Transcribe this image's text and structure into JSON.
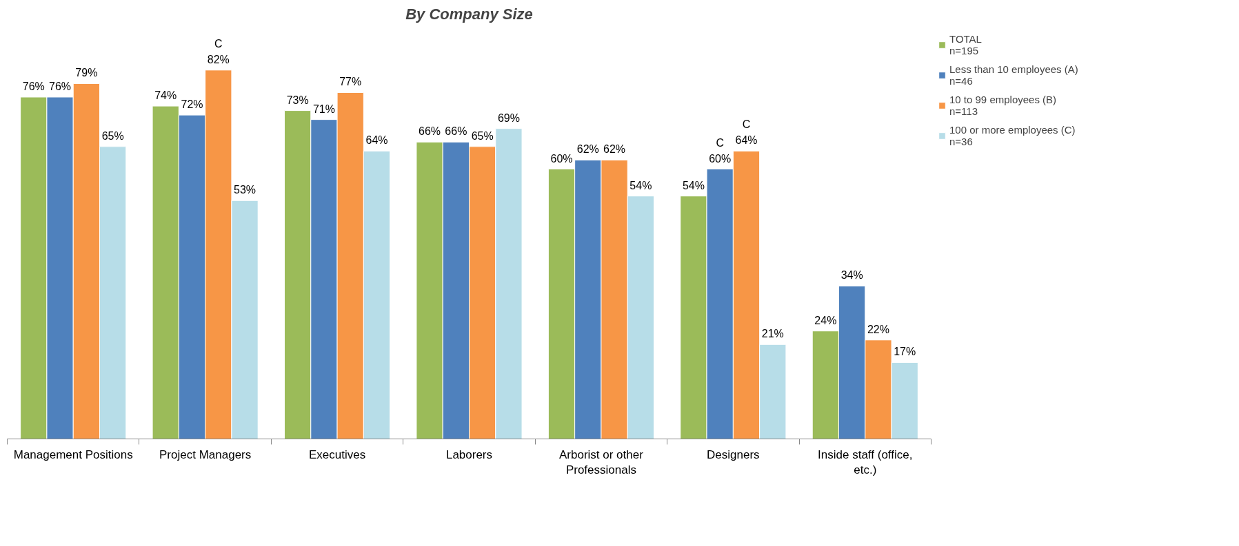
{
  "chart_data": {
    "type": "bar",
    "title": "By Company Size",
    "categories": [
      "Management Positions",
      "Project Managers",
      "Executives",
      "Laborers",
      "Arborist or other Professionals",
      "Designers",
      "Inside staff (office, etc.)"
    ],
    "series": [
      {
        "name": "TOTAL\nn=195",
        "color": "#9bbb59",
        "values": [
          76,
          74,
          73,
          66,
          60,
          54,
          24
        ],
        "value_labels": [
          "76%",
          "74%",
          "73%",
          "66%",
          "60%",
          "54%",
          "24%"
        ]
      },
      {
        "name": "Less than 10 employees (A)\nn=46",
        "color": "#4f81bd",
        "values": [
          76,
          72,
          71,
          66,
          62,
          60,
          34
        ],
        "value_labels": [
          "76%",
          "72%",
          "71%",
          "66%",
          "62%",
          "60%",
          "34%"
        ]
      },
      {
        "name": "10 to 99 employees (B)\nn=113",
        "color": "#f79646",
        "values": [
          79,
          82,
          77,
          65,
          62,
          64,
          22
        ],
        "value_labels": [
          "79%",
          "82%",
          "77%",
          "65%",
          "62%",
          "64%",
          "22%"
        ]
      },
      {
        "name": "100 or more employees (C)\nn=36",
        "color": "#b7dde8",
        "values": [
          65,
          53,
          64,
          69,
          54,
          21,
          17
        ],
        "value_labels": [
          "65%",
          "53%",
          "64%",
          "69%",
          "54%",
          "21%",
          "17%"
        ]
      }
    ],
    "annotations": [
      {
        "text": "C",
        "x": "Project Managers",
        "y": 82
      },
      {
        "text": "C",
        "x": "Designers",
        "y": 60
      },
      {
        "text": "C",
        "x": "Designers",
        "y": 64
      }
    ],
    "tick_labels": "x",
    "grid": false,
    "legend": "top right"
  }
}
